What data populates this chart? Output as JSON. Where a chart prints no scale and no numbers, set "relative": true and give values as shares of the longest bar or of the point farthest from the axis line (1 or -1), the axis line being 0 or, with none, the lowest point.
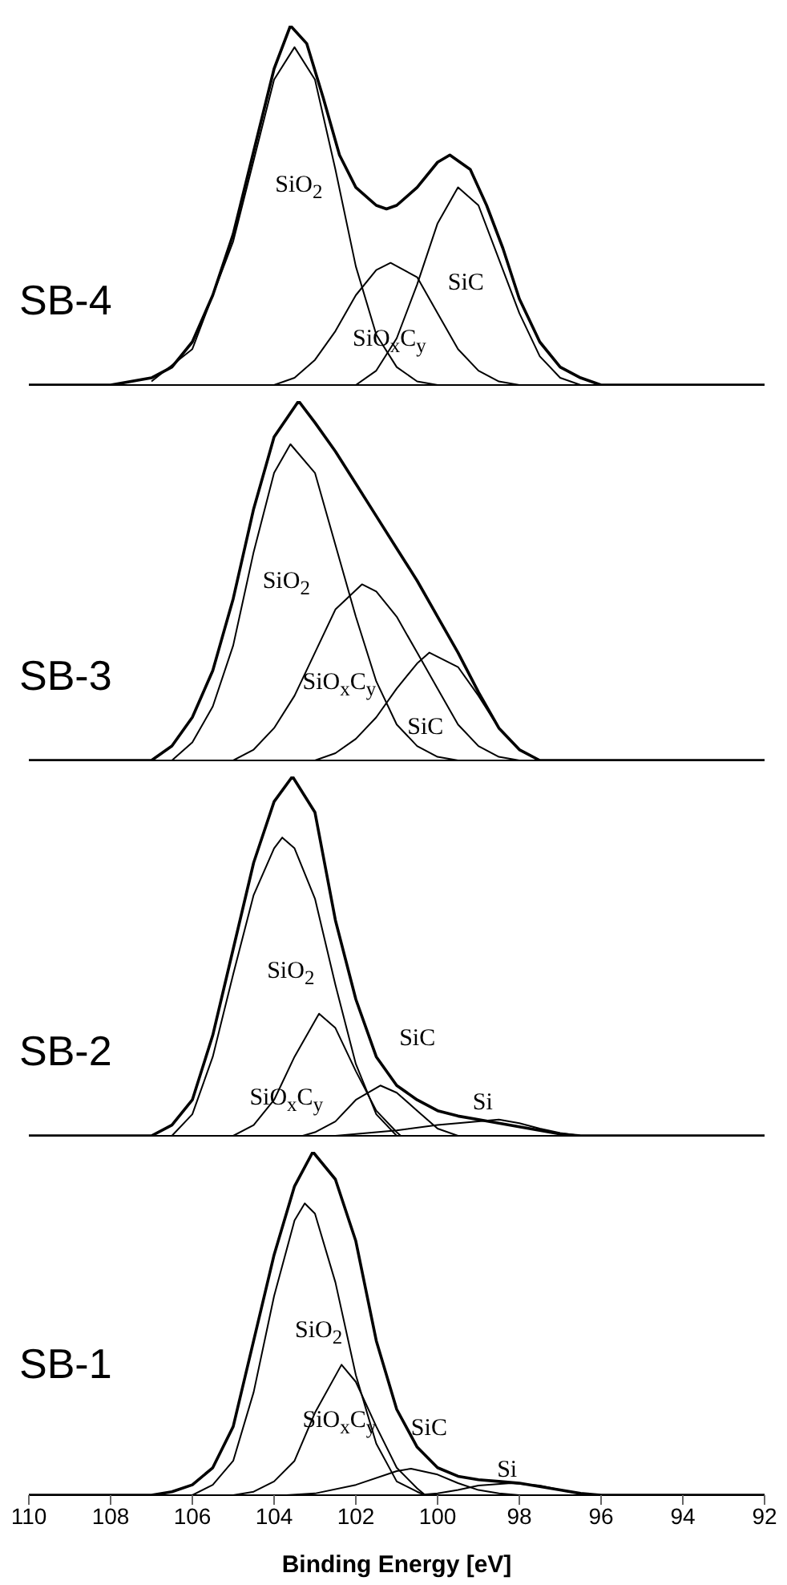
{
  "chart_data": [
    {
      "type": "line",
      "title": "SB-4",
      "relative": true,
      "xlim": [
        110,
        92
      ],
      "tick_labels": false,
      "series": [
        {
          "color": "#000000",
          "x": [
            110,
            108,
            107,
            106.5,
            106,
            105.5,
            105,
            104.5,
            104,
            103.6,
            103.2,
            102.8,
            102.4,
            102,
            101.5,
            101.25,
            101,
            100.5,
            100,
            99.7,
            99.2,
            98.8,
            98.4,
            98,
            97.5,
            97,
            96.5,
            96,
            92
          ],
          "values": [
            0,
            0,
            0.02,
            0.05,
            0.12,
            0.25,
            0.42,
            0.65,
            0.88,
            1.0,
            0.95,
            0.8,
            0.64,
            0.55,
            0.5,
            0.49,
            0.5,
            0.55,
            0.62,
            0.64,
            0.6,
            0.5,
            0.38,
            0.24,
            0.12,
            0.05,
            0.02,
            0,
            0
          ]
        },
        {
          "color": "#000000",
          "x": [
            107,
            106,
            105,
            104,
            103.5,
            103,
            102.5,
            102,
            101.5,
            101,
            100.5,
            100
          ],
          "values": [
            0.01,
            0.1,
            0.4,
            0.85,
            0.94,
            0.85,
            0.6,
            0.33,
            0.14,
            0.05,
            0.01,
            0
          ]
        },
        {
          "color": "#000000",
          "x": [
            104,
            103.5,
            103,
            102.5,
            102,
            101.5,
            101.15,
            100.5,
            100,
            99.5,
            99,
            98.5,
            98
          ],
          "values": [
            0,
            0.02,
            0.07,
            0.15,
            0.25,
            0.32,
            0.34,
            0.3,
            0.2,
            0.1,
            0.04,
            0.01,
            0
          ]
        },
        {
          "color": "#000000",
          "x": [
            102,
            101.5,
            101,
            100.5,
            100,
            99.5,
            99,
            98.5,
            98,
            97.5,
            97,
            96.5
          ],
          "values": [
            0,
            0.04,
            0.13,
            0.28,
            0.45,
            0.55,
            0.5,
            0.35,
            0.2,
            0.08,
            0.02,
            0
          ]
        }
      ],
      "annotations": [
        "SiO$_{2}$",
        "SiO$_{x}$C$_{y}$",
        "SiC"
      ]
    },
    {
      "type": "line",
      "title": "SB-3",
      "relative": true,
      "xlim": [
        110,
        92
      ],
      "tick_labels": false,
      "series": [
        {
          "color": "#000000",
          "x": [
            110,
            108,
            107,
            106.5,
            106,
            105.5,
            105,
            104.5,
            104,
            103.4,
            103,
            102.5,
            102,
            101.5,
            101,
            100.5,
            100,
            99.5,
            99,
            98.5,
            98,
            97.5,
            92
          ],
          "values": [
            0,
            0,
            0,
            0.04,
            0.12,
            0.25,
            0.45,
            0.7,
            0.9,
            1.0,
            0.94,
            0.86,
            0.77,
            0.68,
            0.59,
            0.5,
            0.4,
            0.3,
            0.19,
            0.09,
            0.03,
            0,
            0
          ]
        },
        {
          "color": "#000000",
          "x": [
            106.5,
            106,
            105.5,
            105,
            104.5,
            104,
            103.6,
            103,
            102.5,
            102,
            101.5,
            101,
            100.5,
            100,
            99.5
          ],
          "values": [
            0,
            0.05,
            0.15,
            0.32,
            0.58,
            0.8,
            0.88,
            0.8,
            0.6,
            0.4,
            0.22,
            0.1,
            0.04,
            0.01,
            0
          ]
        },
        {
          "color": "#000000",
          "x": [
            105,
            104.5,
            104,
            103.5,
            103,
            102.5,
            101.85,
            101.5,
            101,
            100.5,
            100,
            99.5,
            99,
            98.5,
            98
          ],
          "values": [
            0,
            0.03,
            0.09,
            0.18,
            0.3,
            0.42,
            0.49,
            0.47,
            0.4,
            0.3,
            0.2,
            0.1,
            0.04,
            0.01,
            0
          ]
        },
        {
          "color": "#000000",
          "x": [
            103,
            102.5,
            102,
            101.5,
            101,
            100.5,
            100.2,
            99.5,
            99,
            98.5,
            98,
            97.5
          ],
          "values": [
            0,
            0.02,
            0.06,
            0.12,
            0.2,
            0.27,
            0.3,
            0.26,
            0.18,
            0.09,
            0.03,
            0
          ]
        }
      ],
      "annotations": [
        "SiO$_{2}$",
        "SiO$_{x}$C$_{y}$",
        "SiC"
      ]
    },
    {
      "type": "line",
      "title": "SB-2",
      "relative": true,
      "xlim": [
        110,
        92
      ],
      "tick_labels": false,
      "series": [
        {
          "color": "#000000",
          "x": [
            110,
            108,
            107,
            106.5,
            106,
            105.5,
            105,
            104.5,
            104,
            103.55,
            103,
            102.5,
            102,
            101.5,
            101,
            100.5,
            100,
            99.5,
            99,
            98.5,
            98,
            97.5,
            97,
            96.5,
            92
          ],
          "values": [
            0,
            0,
            0,
            0.03,
            0.1,
            0.28,
            0.52,
            0.76,
            0.93,
            1.0,
            0.9,
            0.6,
            0.38,
            0.22,
            0.14,
            0.1,
            0.07,
            0.055,
            0.045,
            0.035,
            0.025,
            0.015,
            0.005,
            0,
            0
          ]
        },
        {
          "color": "#000000",
          "x": [
            106.5,
            106,
            105.5,
            105,
            104.5,
            104,
            103.8,
            103.5,
            103,
            102.5,
            102,
            101.5,
            101
          ],
          "values": [
            0,
            0.06,
            0.22,
            0.45,
            0.67,
            0.8,
            0.83,
            0.8,
            0.66,
            0.42,
            0.2,
            0.06,
            0
          ]
        },
        {
          "color": "#000000",
          "x": [
            105,
            104.5,
            104,
            103.5,
            102.9,
            102.5,
            102,
            101.5,
            101,
            100.9
          ],
          "values": [
            0,
            0.03,
            0.1,
            0.22,
            0.34,
            0.3,
            0.18,
            0.07,
            0.01,
            0
          ]
        },
        {
          "color": "#000000",
          "x": [
            103.3,
            103,
            102.5,
            102,
            101.4,
            101,
            100.5,
            100,
            99.5
          ],
          "values": [
            0,
            0.01,
            0.04,
            0.1,
            0.14,
            0.12,
            0.07,
            0.02,
            0
          ]
        },
        {
          "color": "#000000",
          "x": [
            102.5,
            102,
            101,
            100,
            99,
            98.5,
            98,
            97.5,
            97,
            96.5
          ],
          "values": [
            0,
            0.005,
            0.015,
            0.03,
            0.04,
            0.045,
            0.035,
            0.02,
            0.008,
            0
          ]
        }
      ],
      "annotations": [
        "SiO$_{2}$",
        "SiO$_{x}$C$_{y}$",
        "SiC",
        "Si"
      ]
    },
    {
      "type": "line",
      "title": "SB-1",
      "relative": true,
      "xlim": [
        110,
        92
      ],
      "xticks": [
        110,
        108,
        106,
        104,
        102,
        100,
        98,
        96,
        94,
        92
      ],
      "xlabel": "Binding Energy [eV]",
      "series": [
        {
          "color": "#000000",
          "x": [
            110,
            108,
            107,
            106.5,
            106,
            105.5,
            105,
            104.5,
            104,
            103.5,
            103.05,
            102.5,
            102,
            101.5,
            101,
            100.5,
            100,
            99.5,
            99,
            98.5,
            98,
            97.5,
            97,
            96.5,
            96,
            92
          ],
          "values": [
            0,
            0,
            0,
            0.01,
            0.03,
            0.08,
            0.2,
            0.45,
            0.7,
            0.9,
            1.0,
            0.92,
            0.74,
            0.45,
            0.25,
            0.14,
            0.08,
            0.055,
            0.045,
            0.04,
            0.035,
            0.025,
            0.015,
            0.005,
            0,
            0
          ]
        },
        {
          "color": "#000000",
          "x": [
            106,
            105.5,
            105,
            104.5,
            104,
            103.5,
            103.25,
            103,
            102.5,
            102,
            101.5,
            101,
            100.5,
            100.3
          ],
          "values": [
            0,
            0.03,
            0.1,
            0.3,
            0.58,
            0.8,
            0.85,
            0.82,
            0.62,
            0.35,
            0.15,
            0.04,
            0.01,
            0
          ]
        },
        {
          "color": "#000000",
          "x": [
            105,
            104.5,
            104,
            103.5,
            103,
            102.35,
            102,
            101.5,
            101,
            100.5,
            100.3
          ],
          "values": [
            0,
            0.01,
            0.04,
            0.1,
            0.24,
            0.38,
            0.33,
            0.2,
            0.08,
            0.02,
            0
          ]
        },
        {
          "color": "#000000",
          "x": [
            103.7,
            103,
            102,
            101,
            100.65,
            100,
            99.5,
            99,
            98.5,
            98
          ],
          "values": [
            0,
            0.005,
            0.03,
            0.07,
            0.077,
            0.06,
            0.035,
            0.015,
            0.005,
            0
          ]
        },
        {
          "color": "#000000",
          "x": [
            100.5,
            100,
            99.5,
            99,
            98.2,
            97.5,
            97,
            96.5,
            96
          ],
          "values": [
            0,
            0.005,
            0.015,
            0.028,
            0.035,
            0.028,
            0.015,
            0.005,
            0
          ]
        }
      ],
      "annotations": [
        "SiO$_{2}$",
        "SiO$_{x}$C$_{y}$",
        "SiC",
        "Si"
      ]
    }
  ]
}
